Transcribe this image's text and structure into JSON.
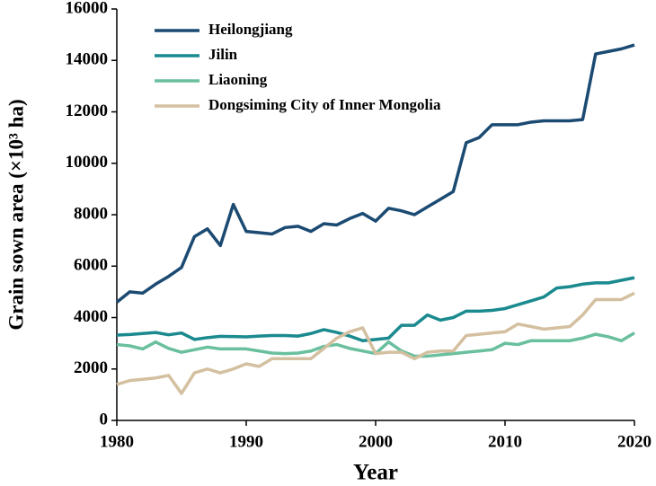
{
  "chart_data": {
    "type": "line",
    "xlabel": "Year",
    "ylabel": "Grain sown area (×10³ ha)",
    "x": [
      1980,
      1981,
      1982,
      1983,
      1984,
      1985,
      1986,
      1987,
      1988,
      1989,
      1990,
      1991,
      1992,
      1993,
      1994,
      1995,
      1996,
      1997,
      1998,
      1999,
      2000,
      2001,
      2002,
      2003,
      2004,
      2005,
      2006,
      2007,
      2008,
      2009,
      2010,
      2011,
      2012,
      2013,
      2014,
      2015,
      2016,
      2017,
      2018,
      2019,
      2020
    ],
    "series": [
      {
        "name": "Heilongjiang",
        "color": "#1b4a72",
        "values": [
          4600,
          5000,
          4950,
          5300,
          5600,
          5950,
          7150,
          7450,
          6800,
          8400,
          7350,
          7300,
          7250,
          7500,
          7550,
          7350,
          7650,
          7600,
          7850,
          8050,
          7750,
          8250,
          8150,
          8000,
          8300,
          8600,
          8900,
          10800,
          11000,
          11500,
          11500,
          11500,
          11600,
          11650,
          11650,
          11650,
          11700,
          14250,
          14350,
          14450,
          14600
        ]
      },
      {
        "name": "Jilin",
        "color": "#1a8a8f",
        "values": [
          3320,
          3340,
          3380,
          3420,
          3330,
          3400,
          3150,
          3220,
          3270,
          3260,
          3250,
          3280,
          3300,
          3300,
          3280,
          3380,
          3530,
          3420,
          3280,
          3100,
          3150,
          3200,
          3700,
          3700,
          4100,
          3900,
          4000,
          4250,
          4250,
          4280,
          4350,
          4500,
          4650,
          4800,
          5150,
          5200,
          5300,
          5350,
          5350,
          5450,
          5550
        ]
      },
      {
        "name": "Liaoning",
        "color": "#6abf9e",
        "values": [
          2950,
          2900,
          2780,
          3050,
          2800,
          2650,
          2750,
          2850,
          2780,
          2780,
          2780,
          2700,
          2620,
          2600,
          2620,
          2700,
          2880,
          2950,
          2800,
          2700,
          2600,
          3050,
          2700,
          2500,
          2500,
          2550,
          2600,
          2650,
          2700,
          2750,
          3000,
          2950,
          3100,
          3100,
          3100,
          3100,
          3200,
          3350,
          3250,
          3100,
          3400
        ]
      },
      {
        "name": "Dongsiming City of Inner Mongolia",
        "color": "#d4c0a0",
        "values": [
          1400,
          1550,
          1600,
          1650,
          1750,
          1050,
          1850,
          2000,
          1850,
          2000,
          2200,
          2100,
          2400,
          2400,
          2400,
          2400,
          2800,
          3200,
          3450,
          3600,
          2600,
          2650,
          2650,
          2400,
          2650,
          2700,
          2700,
          3300,
          3350,
          3400,
          3450,
          3750,
          3650,
          3550,
          3600,
          3650,
          4100,
          4700,
          4700,
          4700,
          4950
        ]
      }
    ],
    "xlim": [
      1980,
      2020
    ],
    "xticks": [
      1980,
      1990,
      2000,
      2010,
      2020
    ],
    "ylim": [
      0,
      16000
    ],
    "yticks": [
      0,
      2000,
      4000,
      6000,
      8000,
      10000,
      12000,
      14000,
      16000
    ],
    "legend": "upper-left"
  }
}
